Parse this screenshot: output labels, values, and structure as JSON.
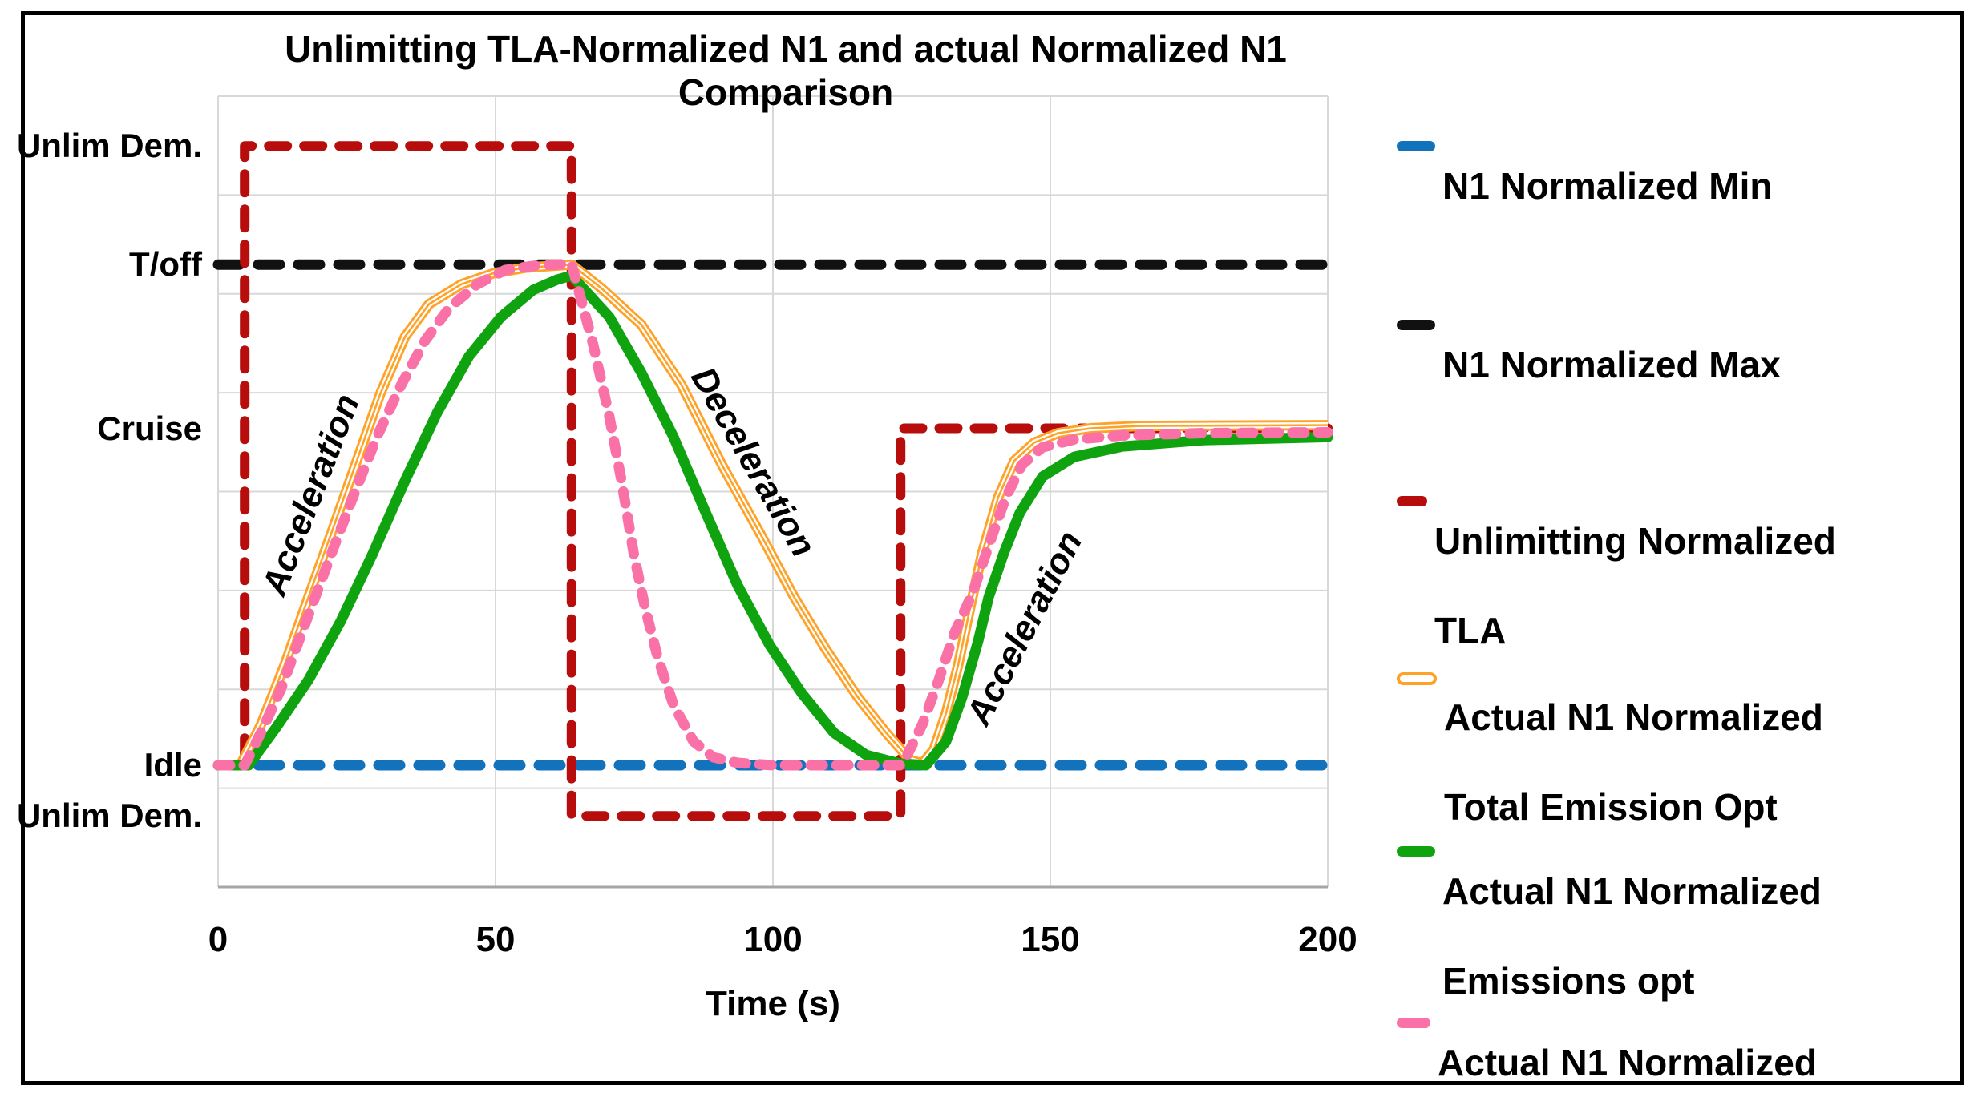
{
  "chart_data": {
    "type": "line",
    "title": "Unlimitting TLA-Normalized N1 and actual Normalized N1 Comparison",
    "x_axis": {
      "label": "Time (s)",
      "ticks": [
        0,
        50,
        100,
        150,
        200
      ],
      "range": [
        0,
        200
      ]
    },
    "y_axis": {
      "range": [
        0,
        1
      ],
      "gridline_step": 0.125,
      "labels": [
        {
          "text": "Unlim Dem.",
          "value": 0.937
        },
        {
          "text": "T/off",
          "value": 0.787
        },
        {
          "text": "Cruise",
          "value": 0.58
        },
        {
          "text": "Idle",
          "value": 0.154
        },
        {
          "text": "Unlim Dem.",
          "value": 0.09
        }
      ]
    },
    "annotations": [
      {
        "text": "Acceleration",
        "t": 17.1,
        "v": 0.495,
        "angle": -69
      },
      {
        "text": "Deceleration",
        "t": 96.1,
        "v": 0.536,
        "angle": 60
      },
      {
        "text": "Acceleration",
        "t": 145.7,
        "v": 0.326,
        "angle": -63
      }
    ],
    "series": [
      {
        "id": "n1-min",
        "name": "N1 Normalized Min",
        "legend_lines": [
          "N1 Normalized Min"
        ],
        "color": "#1272BB",
        "style": "dash",
        "points": [
          [
            0,
            0.154
          ],
          [
            200,
            0.154
          ]
        ]
      },
      {
        "id": "n1-max",
        "name": "N1 Normalized Max",
        "legend_lines": [
          "N1 Normalized Max"
        ],
        "color": "#111111",
        "style": "dash",
        "points": [
          [
            0,
            0.787
          ],
          [
            200,
            0.787
          ]
        ]
      },
      {
        "id": "unlim-tla",
        "name": "Unlimitting Normalized TLA",
        "legend_lines": [
          "Unlimitting Normalized",
          "TLA"
        ],
        "color": "#B70D0D",
        "style": "tla-dash",
        "points": [
          [
            0,
            0.154
          ],
          [
            4.8,
            0.154
          ],
          [
            4.8,
            0.937
          ],
          [
            63.7,
            0.937
          ],
          [
            63.7,
            0.09
          ],
          [
            123,
            0.09
          ],
          [
            123,
            0.58
          ],
          [
            200,
            0.58
          ]
        ]
      },
      {
        "id": "total-emission-opt",
        "name": "Actual N1 Normalized Total Emission Opt",
        "legend_lines": [
          "Actual N1 Normalized",
          "Total Emission Opt"
        ],
        "color": "#FFA228",
        "style": "triple",
        "points": [
          [
            0,
            0.154
          ],
          [
            4,
            0.154
          ],
          [
            7.7,
            0.205
          ],
          [
            12,
            0.281
          ],
          [
            16.3,
            0.367
          ],
          [
            20.7,
            0.453
          ],
          [
            25,
            0.539
          ],
          [
            29.3,
            0.625
          ],
          [
            33.7,
            0.696
          ],
          [
            38,
            0.737
          ],
          [
            43.8,
            0.762
          ],
          [
            49.6,
            0.776
          ],
          [
            55.3,
            0.783
          ],
          [
            63.7,
            0.787
          ],
          [
            69.1,
            0.757
          ],
          [
            76.3,
            0.711
          ],
          [
            83.5,
            0.635
          ],
          [
            90.8,
            0.534
          ],
          [
            98,
            0.443
          ],
          [
            103.8,
            0.367
          ],
          [
            109.5,
            0.301
          ],
          [
            115.3,
            0.24
          ],
          [
            120.4,
            0.195
          ],
          [
            124.7,
            0.161
          ],
          [
            126.9,
            0.156
          ],
          [
            129,
            0.174
          ],
          [
            131.2,
            0.22
          ],
          [
            133.4,
            0.281
          ],
          [
            135.5,
            0.352
          ],
          [
            137.7,
            0.422
          ],
          [
            140.6,
            0.493
          ],
          [
            143.5,
            0.539
          ],
          [
            147.1,
            0.562
          ],
          [
            151.4,
            0.574
          ],
          [
            157.2,
            0.58
          ],
          [
            165.9,
            0.583
          ],
          [
            200,
            0.584
          ]
        ]
      },
      {
        "id": "emissions-opt",
        "name": "Actual N1 Normalized Emissions opt",
        "legend_lines": [
          "Actual N1 Normalized",
          "Emissions opt"
        ],
        "color": "#10A310",
        "style": "solid",
        "points": [
          [
            0,
            0.154
          ],
          [
            5.5,
            0.154
          ],
          [
            10.5,
            0.202
          ],
          [
            16.3,
            0.262
          ],
          [
            22.1,
            0.336
          ],
          [
            27.9,
            0.422
          ],
          [
            33.7,
            0.514
          ],
          [
            39.5,
            0.6
          ],
          [
            45.2,
            0.671
          ],
          [
            51,
            0.721
          ],
          [
            56.8,
            0.755
          ],
          [
            61.1,
            0.768
          ],
          [
            63.7,
            0.773
          ],
          [
            70.5,
            0.721
          ],
          [
            76.3,
            0.65
          ],
          [
            82.1,
            0.569
          ],
          [
            87.9,
            0.473
          ],
          [
            93.6,
            0.382
          ],
          [
            99.4,
            0.306
          ],
          [
            105.2,
            0.245
          ],
          [
            111,
            0.195
          ],
          [
            116.8,
            0.167
          ],
          [
            123,
            0.156
          ],
          [
            127.6,
            0.154
          ],
          [
            131.2,
            0.184
          ],
          [
            134.1,
            0.24
          ],
          [
            137,
            0.311
          ],
          [
            138.9,
            0.367
          ],
          [
            141.6,
            0.422
          ],
          [
            144.5,
            0.473
          ],
          [
            148.6,
            0.519
          ],
          [
            154.3,
            0.544
          ],
          [
            163,
            0.557
          ],
          [
            177.5,
            0.565
          ],
          [
            200,
            0.569
          ]
        ]
      },
      {
        "id": "actual-n1",
        "name": "Actual N1 Normalized",
        "legend_lines": [
          "Actual N1 Normalized"
        ],
        "color": "#FA71A8",
        "style": "pink-dash",
        "points": [
          [
            0,
            0.154
          ],
          [
            4.8,
            0.154
          ],
          [
            7.7,
            0.195
          ],
          [
            11.3,
            0.25
          ],
          [
            15.6,
            0.331
          ],
          [
            19.9,
            0.412
          ],
          [
            24.3,
            0.493
          ],
          [
            28.6,
            0.569
          ],
          [
            33,
            0.635
          ],
          [
            37.3,
            0.691
          ],
          [
            41.6,
            0.732
          ],
          [
            46.7,
            0.762
          ],
          [
            51.7,
            0.78
          ],
          [
            57.5,
            0.786
          ],
          [
            63.7,
            0.788
          ],
          [
            67.6,
            0.686
          ],
          [
            70.5,
            0.595
          ],
          [
            72.7,
            0.514
          ],
          [
            74.9,
            0.422
          ],
          [
            77,
            0.352
          ],
          [
            79.2,
            0.291
          ],
          [
            82.1,
            0.23
          ],
          [
            85.7,
            0.184
          ],
          [
            89.3,
            0.164
          ],
          [
            93.6,
            0.157
          ],
          [
            100,
            0.154
          ],
          [
            123,
            0.154
          ],
          [
            124,
            0.164
          ],
          [
            126.9,
            0.205
          ],
          [
            129.8,
            0.26
          ],
          [
            132.7,
            0.321
          ],
          [
            136,
            0.372
          ],
          [
            139.2,
            0.438
          ],
          [
            142,
            0.493
          ],
          [
            144.9,
            0.534
          ],
          [
            148.6,
            0.556
          ],
          [
            154.3,
            0.566
          ],
          [
            163,
            0.571
          ],
          [
            177.5,
            0.574
          ],
          [
            200,
            0.575
          ]
        ]
      }
    ]
  }
}
